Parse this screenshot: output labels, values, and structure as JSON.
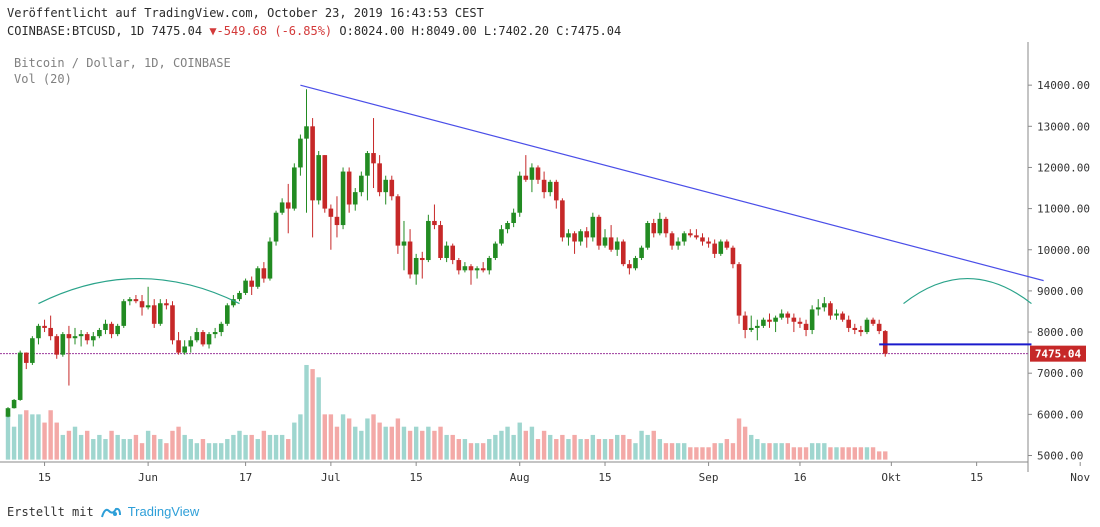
{
  "header": {
    "published": "Veröffentlicht auf TradingView.com, October 23, 2019 16:43:53 CEST",
    "symbol": "COINBASE:BTCUSD, 1D 7475.04",
    "change_arrow": "▼",
    "change": "-549.68 (-6.85%)",
    "ohlc_o": "O:8024.00",
    "ohlc_h": "H:8049.00",
    "ohlc_l": "L:7402.20",
    "ohlc_c": "C:7475.04"
  },
  "legend": {
    "title": "Bitcoin / Dollar, 1D, COINBASE",
    "volume": "Vol (20)"
  },
  "footer": {
    "created_with": "Erstellt mit",
    "brand": "TradingView",
    "logo_icon": "tradingview-logo-icon"
  },
  "colors": {
    "up": "#26a69a",
    "down": "#ef5350",
    "candle_up": "#228b22",
    "candle_down": "#c62828",
    "trendline": "#4a4ee8",
    "arc": "#2aa38a",
    "support": "#1a1acc",
    "price_line": "#9c3a9c",
    "price_badge": "#c62828"
  },
  "chart_data": {
    "type": "candlestick",
    "title": "Bitcoin / Dollar, 1D, COINBASE",
    "x_tick_labels": [
      "15",
      "Jun",
      "17",
      "Jul",
      "15",
      "Aug",
      "15",
      "Sep",
      "16",
      "Okt",
      "15",
      "Nov"
    ],
    "y_tick_labels": [
      "14000.00",
      "13000.00",
      "12000.00",
      "11000.00",
      "10000.00",
      "9000.00",
      "8000.00",
      "7000.00",
      "6000.00",
      "5000.00"
    ],
    "ylim": [
      4800,
      14600
    ],
    "last_price_label": "7475.04",
    "series": [
      {
        "name": "BTCUSD",
        "date_start": "2019-05-09",
        "ohlc": [
          [
            5943,
            6175,
            5930,
            6150
          ],
          [
            6150,
            6373,
            6140,
            6350
          ],
          [
            6350,
            7550,
            6330,
            7500
          ],
          [
            7500,
            7505,
            7100,
            7250
          ],
          [
            7250,
            7900,
            7200,
            7850
          ],
          [
            7850,
            8200,
            7700,
            8150
          ],
          [
            8150,
            8300,
            8000,
            8100
          ],
          [
            8100,
            8400,
            7800,
            7900
          ],
          [
            7900,
            7950,
            7350,
            7450
          ],
          [
            7450,
            8000,
            7400,
            7950
          ],
          [
            7950,
            8150,
            6700,
            7850
          ],
          [
            7850,
            8100,
            7700,
            7900
          ],
          [
            7900,
            8050,
            7650,
            7950
          ],
          [
            7950,
            8000,
            7700,
            7800
          ],
          [
            7800,
            8000,
            7650,
            7900
          ],
          [
            7900,
            8100,
            7850,
            8050
          ],
          [
            8050,
            8300,
            7950,
            8200
          ],
          [
            8200,
            8250,
            7850,
            7950
          ],
          [
            7950,
            8200,
            7900,
            8150
          ],
          [
            8150,
            8800,
            8100,
            8750
          ],
          [
            8750,
            8850,
            8650,
            8800
          ],
          [
            8800,
            8900,
            8700,
            8750
          ],
          [
            8750,
            8900,
            8400,
            8600
          ],
          [
            8600,
            9100,
            8550,
            8650
          ],
          [
            8650,
            8800,
            8100,
            8200
          ],
          [
            8200,
            8800,
            8150,
            8700
          ],
          [
            8700,
            8800,
            8550,
            8650
          ],
          [
            8650,
            8750,
            7700,
            7800
          ],
          [
            7800,
            8000,
            7450,
            7500
          ],
          [
            7500,
            7800,
            7450,
            7650
          ],
          [
            7650,
            7900,
            7500,
            7800
          ],
          [
            7800,
            8100,
            7750,
            8000
          ],
          [
            8000,
            8050,
            7650,
            7700
          ],
          [
            7700,
            8000,
            7600,
            7950
          ],
          [
            7950,
            8100,
            7850,
            8000
          ],
          [
            8000,
            8250,
            7900,
            8200
          ],
          [
            8200,
            8700,
            8150,
            8650
          ],
          [
            8650,
            8900,
            8600,
            8800
          ],
          [
            8800,
            9000,
            8750,
            8950
          ],
          [
            8950,
            9300,
            8900,
            9250
          ],
          [
            9250,
            9350,
            8900,
            9100
          ],
          [
            9100,
            9600,
            9050,
            9550
          ],
          [
            9550,
            9700,
            9200,
            9300
          ],
          [
            9300,
            10300,
            9250,
            10200
          ],
          [
            10200,
            10950,
            10100,
            10900
          ],
          [
            10900,
            11250,
            10850,
            11150
          ],
          [
            11150,
            11600,
            10400,
            11000
          ],
          [
            11000,
            12100,
            10950,
            12000
          ],
          [
            12000,
            12800,
            11800,
            12700
          ],
          [
            12700,
            13900,
            10900,
            13000
          ],
          [
            13000,
            13200,
            10300,
            11200
          ],
          [
            11200,
            12400,
            11100,
            12300
          ],
          [
            12300,
            12300,
            10900,
            11000
          ],
          [
            11000,
            11100,
            10000,
            10800
          ],
          [
            10800,
            11300,
            10300,
            10600
          ],
          [
            10600,
            12000,
            10500,
            11900
          ],
          [
            11900,
            12000,
            10900,
            11100
          ],
          [
            11100,
            11500,
            10950,
            11400
          ],
          [
            11400,
            11900,
            11300,
            11800
          ],
          [
            11800,
            12400,
            11200,
            12350
          ],
          [
            12350,
            13200,
            11500,
            12100
          ],
          [
            12100,
            12300,
            11300,
            11400
          ],
          [
            11400,
            11800,
            11100,
            11700
          ],
          [
            11700,
            11800,
            11200,
            11300
          ],
          [
            11300,
            11350,
            9900,
            10100
          ],
          [
            10100,
            10700,
            9500,
            10200
          ],
          [
            10200,
            10500,
            9300,
            9400
          ],
          [
            9400,
            9900,
            9150,
            9800
          ],
          [
            9800,
            9950,
            9300,
            9750
          ],
          [
            9750,
            10850,
            9700,
            10700
          ],
          [
            10700,
            11100,
            10500,
            10600
          ],
          [
            10600,
            10700,
            9750,
            9800
          ],
          [
            9800,
            10200,
            9700,
            10100
          ],
          [
            10100,
            10150,
            9650,
            9750
          ],
          [
            9750,
            9800,
            9400,
            9500
          ],
          [
            9500,
            9700,
            9450,
            9600
          ],
          [
            9600,
            9650,
            9150,
            9500
          ],
          [
            9500,
            9600,
            9300,
            9550
          ],
          [
            9550,
            9700,
            9450,
            9500
          ],
          [
            9500,
            9850,
            9400,
            9800
          ],
          [
            9800,
            10200,
            9750,
            10150
          ],
          [
            10150,
            10600,
            10100,
            10500
          ],
          [
            10500,
            10700,
            10400,
            10650
          ],
          [
            10650,
            11000,
            10550,
            10900
          ],
          [
            10900,
            11900,
            10800,
            11800
          ],
          [
            11800,
            12300,
            11650,
            11700
          ],
          [
            11700,
            12100,
            11400,
            12000
          ],
          [
            12000,
            12050,
            11600,
            11700
          ],
          [
            11700,
            11900,
            11250,
            11400
          ],
          [
            11400,
            11700,
            11300,
            11650
          ],
          [
            11650,
            11700,
            11000,
            11200
          ],
          [
            11200,
            11250,
            10200,
            10300
          ],
          [
            10300,
            10500,
            10100,
            10400
          ],
          [
            10400,
            10450,
            9900,
            10200
          ],
          [
            10200,
            10500,
            10100,
            10450
          ],
          [
            10450,
            10550,
            10050,
            10300
          ],
          [
            10300,
            10900,
            10200,
            10800
          ],
          [
            10800,
            10850,
            10000,
            10100
          ],
          [
            10100,
            10500,
            10050,
            10300
          ],
          [
            10300,
            10600,
            9950,
            10000
          ],
          [
            10000,
            10300,
            9850,
            10200
          ],
          [
            10200,
            10250,
            9600,
            9650
          ],
          [
            9650,
            9750,
            9400,
            9550
          ],
          [
            9550,
            9850,
            9500,
            9800
          ],
          [
            9800,
            10100,
            9750,
            10050
          ],
          [
            10050,
            10700,
            10000,
            10650
          ],
          [
            10650,
            10750,
            10300,
            10400
          ],
          [
            10400,
            10900,
            10350,
            10750
          ],
          [
            10750,
            10800,
            10300,
            10400
          ],
          [
            10400,
            10450,
            10000,
            10100
          ],
          [
            10100,
            10300,
            10000,
            10200
          ],
          [
            10200,
            10450,
            10100,
            10400
          ],
          [
            10400,
            10500,
            10300,
            10350
          ],
          [
            10350,
            10500,
            10250,
            10300
          ],
          [
            10300,
            10400,
            10100,
            10200
          ],
          [
            10200,
            10300,
            10050,
            10150
          ],
          [
            10150,
            10250,
            9800,
            9900
          ],
          [
            9900,
            10250,
            9850,
            10200
          ],
          [
            10200,
            10250,
            10000,
            10050
          ],
          [
            10050,
            10100,
            9550,
            9650
          ],
          [
            9650,
            9700,
            8200,
            8400
          ],
          [
            8400,
            8500,
            7850,
            8050
          ],
          [
            8050,
            8400,
            8000,
            8100
          ],
          [
            8100,
            8300,
            7800,
            8150
          ],
          [
            8150,
            8350,
            8100,
            8300
          ],
          [
            8300,
            8450,
            8100,
            8250
          ],
          [
            8250,
            8400,
            8000,
            8350
          ],
          [
            8350,
            8550,
            8300,
            8450
          ],
          [
            8450,
            8500,
            8200,
            8350
          ],
          [
            8350,
            8450,
            8000,
            8250
          ],
          [
            8250,
            8350,
            8100,
            8200
          ],
          [
            8200,
            8300,
            7900,
            8050
          ],
          [
            8050,
            8650,
            7950,
            8550
          ],
          [
            8550,
            8800,
            8400,
            8600
          ],
          [
            8600,
            8850,
            8500,
            8700
          ],
          [
            8700,
            8750,
            8300,
            8400
          ],
          [
            8400,
            8550,
            8300,
            8450
          ],
          [
            8450,
            8500,
            8250,
            8300
          ],
          [
            8300,
            8400,
            8000,
            8100
          ],
          [
            8100,
            8200,
            7950,
            8050
          ],
          [
            8050,
            8150,
            7900,
            8000
          ],
          [
            8000,
            8350,
            7950,
            8300
          ],
          [
            8300,
            8350,
            8150,
            8200
          ],
          [
            8200,
            8300,
            7950,
            8024
          ],
          [
            8024,
            8049,
            7402,
            7475
          ]
        ]
      },
      {
        "name": "Vol (20)",
        "values": [
          6000,
          5700,
          6000,
          6100,
          6000,
          6000,
          5800,
          6100,
          5800,
          5500,
          5600,
          5700,
          5500,
          5600,
          5400,
          5500,
          5400,
          5600,
          5500,
          5400,
          5400,
          5500,
          5300,
          5600,
          5500,
          5400,
          5300,
          5600,
          5700,
          5500,
          5400,
          5300,
          5400,
          5300,
          5300,
          5300,
          5400,
          5500,
          5600,
          5500,
          5500,
          5400,
          5600,
          5500,
          5500,
          5500,
          5400,
          5800,
          6000,
          7200,
          7100,
          6900,
          6000,
          6000,
          5700,
          6000,
          5900,
          5700,
          5600,
          5900,
          6000,
          5800,
          5700,
          5700,
          5900,
          5700,
          5600,
          5700,
          5600,
          5700,
          5600,
          5700,
          5500,
          5500,
          5400,
          5400,
          5300,
          5300,
          5300,
          5400,
          5500,
          5600,
          5700,
          5500,
          5800,
          5600,
          5700,
          5400,
          5600,
          5500,
          5400,
          5500,
          5400,
          5500,
          5400,
          5400,
          5500,
          5400,
          5400,
          5400,
          5500,
          5500,
          5400,
          5300,
          5600,
          5500,
          5600,
          5400,
          5300,
          5300,
          5300,
          5300,
          5200,
          5200,
          5200,
          5200,
          5300,
          5300,
          5400,
          5300,
          5900,
          5700,
          5500,
          5400,
          5300,
          5300,
          5300,
          5300,
          5300,
          5200,
          5200,
          5200,
          5300,
          5300,
          5300,
          5200,
          5200,
          5200,
          5200,
          5200,
          5200,
          5200,
          5200,
          5100,
          5100
        ]
      }
    ],
    "annotations": {
      "trendline": {
        "from": [
          "2019-06-26",
          14000
        ],
        "to": [
          "2019-10-26",
          9250
        ]
      },
      "arc_left": {
        "from": "2019-05-14",
        "to": "2019-06-16",
        "peak": 9300
      },
      "arc_right": {
        "from": "2019-10-03",
        "to": "2019-10-24",
        "peak": 9300
      },
      "support_line": {
        "from": "2019-09-29",
        "to": "2019-10-24",
        "value": 7700
      },
      "price_line": {
        "value": 7475.04
      }
    }
  }
}
